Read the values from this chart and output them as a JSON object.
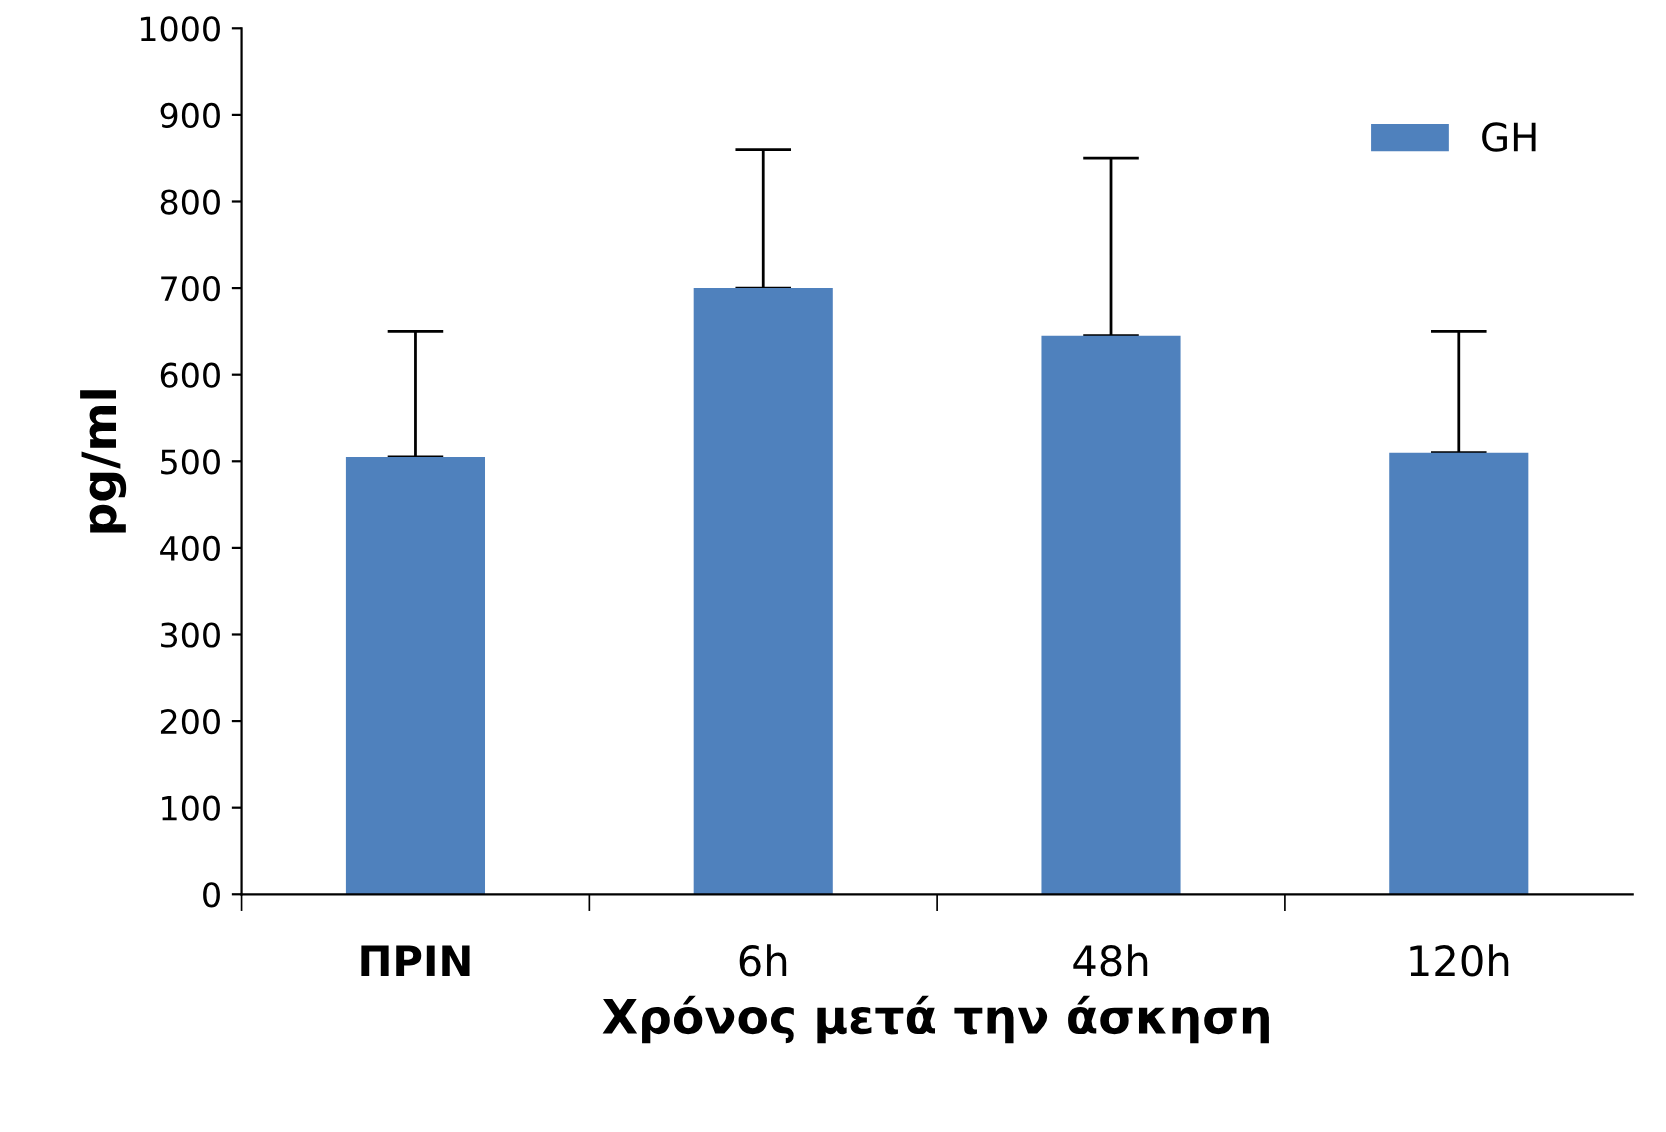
{
  "chart_data": {
    "type": "bar",
    "xlabel": "Χρόνος μετά την άσκηση",
    "ylabel": "pg/ml",
    "categories": [
      "ΠΡΙΝ",
      "6h",
      "48h",
      "120h"
    ],
    "series": [
      {
        "name": "GH",
        "color": "#4f81bd",
        "values": [
          505,
          700,
          645,
          510
        ],
        "errors": [
          [
            505,
            650
          ],
          [
            700,
            860
          ],
          [
            645,
            850
          ],
          [
            510,
            650
          ]
        ]
      }
    ],
    "ylim": [
      0,
      1000
    ],
    "yticks": [
      0,
      100,
      200,
      300,
      400,
      500,
      600,
      700,
      800,
      900,
      1000
    ],
    "grid": false,
    "legend": "top right"
  }
}
